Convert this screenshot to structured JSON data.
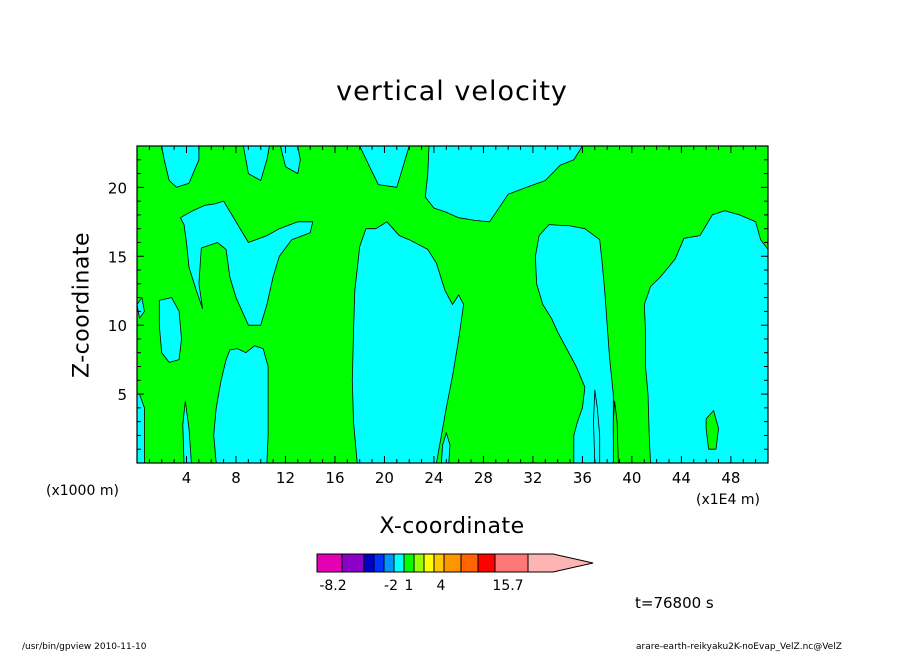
{
  "chart_data": {
    "type": "heatmap",
    "title": "vertical velocity",
    "xlabel": "X-coordinate",
    "ylabel": "Z-coordinate",
    "x_unit_label": "(x1000 m)",
    "x_unit_label_right": "(x1E4 m)",
    "xlim": [
      0,
      51
    ],
    "ylim": [
      0,
      23
    ],
    "x_ticks": [
      4,
      8,
      12,
      16,
      20,
      24,
      28,
      32,
      36,
      40,
      44,
      48
    ],
    "y_ticks": [
      5,
      10,
      15,
      20
    ],
    "field": [
      {
        "value_range": "-2 to 1",
        "color": "#00ffff",
        "regions": [
          {
            "name": "region-a",
            "points": [
              [
                0,
                23
              ],
              [
                2,
                23
              ],
              [
                2.2,
                22
              ],
              [
                2.6,
                20.5
              ],
              [
                3.2,
                20
              ],
              [
                4.2,
                20.3
              ],
              [
                5,
                22
              ],
              [
                5,
                23
              ],
              [
                0,
                23
              ]
            ]
          },
          {
            "name": "region-b",
            "points": [
              [
                5.4,
                23
              ],
              [
                8.6,
                23
              ],
              [
                9,
                21
              ],
              [
                10,
                20.5
              ],
              [
                10.5,
                22
              ],
              [
                10.7,
                23
              ],
              [
                5.4,
                23
              ]
            ]
          },
          {
            "name": "region-c",
            "points": [
              [
                11.6,
                23
              ],
              [
                13,
                23
              ],
              [
                13.2,
                22
              ],
              [
                13,
                21
              ],
              [
                12,
                21.5
              ],
              [
                11.6,
                23
              ]
            ]
          },
          {
            "name": "region-d",
            "points": [
              [
                18,
                23
              ],
              [
                22,
                23
              ],
              [
                21.5,
                21.5
              ],
              [
                21,
                20
              ],
              [
                19.5,
                20.2
              ],
              [
                18.8,
                21.5
              ],
              [
                18,
                23
              ]
            ]
          },
          {
            "name": "region-e",
            "points": [
              [
                23.6,
                23
              ],
              [
                36,
                23
              ],
              [
                35.3,
                22
              ],
              [
                34.2,
                21.6
              ],
              [
                33,
                20.5
              ],
              [
                31.5,
                20
              ],
              [
                30,
                19.5
              ],
              [
                28.5,
                17.5
              ],
              [
                27.3,
                17.6
              ],
              [
                26,
                17.8
              ],
              [
                25,
                18.2
              ],
              [
                24,
                18.5
              ],
              [
                23.3,
                19.3
              ],
              [
                23.5,
                21
              ],
              [
                23.6,
                23
              ]
            ]
          },
          {
            "name": "region-f",
            "points": [
              [
                7,
                19
              ],
              [
                9,
                16
              ],
              [
                10.5,
                16.5
              ],
              [
                11.5,
                17
              ],
              [
                13,
                17.5
              ],
              [
                14.2,
                17.5
              ],
              [
                14,
                16.7
              ],
              [
                12.5,
                16.2
              ],
              [
                11.5,
                15
              ],
              [
                11,
                13.5
              ],
              [
                10.5,
                11.5
              ],
              [
                10,
                10
              ],
              [
                9,
                10
              ],
              [
                8,
                12
              ],
              [
                7.5,
                13.5
              ],
              [
                7.2,
                15.5
              ],
              [
                6.5,
                16
              ],
              [
                5.2,
                15.6
              ],
              [
                5,
                13
              ],
              [
                5.3,
                11.2
              ],
              [
                4.8,
                12.5
              ],
              [
                4.2,
                14.2
              ],
              [
                4,
                16
              ],
              [
                3.8,
                17.3
              ],
              [
                3.5,
                17.8
              ],
              [
                4.5,
                18.3
              ],
              [
                5.5,
                18.7
              ],
              [
                6.3,
                18.8
              ],
              [
                7,
                19
              ]
            ]
          },
          {
            "name": "region-g",
            "points": [
              [
                0,
                11.5
              ],
              [
                0.4,
                12
              ],
              [
                0.6,
                11
              ],
              [
                0.2,
                10.5
              ],
              [
                0,
                11.5
              ]
            ]
          },
          {
            "name": "region-h",
            "points": [
              [
                1.8,
                11.8
              ],
              [
                2.8,
                12
              ],
              [
                3.4,
                11
              ],
              [
                3.6,
                9
              ],
              [
                3.4,
                7.5
              ],
              [
                2.6,
                7.3
              ],
              [
                2,
                8
              ],
              [
                1.8,
                10
              ],
              [
                1.8,
                11.8
              ]
            ]
          },
          {
            "name": "region-i",
            "points": [
              [
                6.4,
                0
              ],
              [
                10.5,
                0
              ],
              [
                10.6,
                2
              ],
              [
                10.6,
                5
              ],
              [
                10.6,
                7
              ],
              [
                10.2,
                8.3
              ],
              [
                9.5,
                8.5
              ],
              [
                8.8,
                8
              ],
              [
                8.1,
                8.3
              ],
              [
                7.5,
                8.2
              ],
              [
                7.2,
                7.5
              ],
              [
                6.8,
                6
              ],
              [
                6.4,
                4
              ],
              [
                6.2,
                2
              ],
              [
                6.4,
                0
              ]
            ]
          },
          {
            "name": "region-j",
            "points": [
              [
                0,
                0
              ],
              [
                0.6,
                0
              ],
              [
                0.6,
                2
              ],
              [
                0.6,
                4
              ],
              [
                0.2,
                5
              ],
              [
                0,
                5
              ],
              [
                0,
                0
              ]
            ]
          },
          {
            "name": "region-k",
            "points": [
              [
                3.8,
                0
              ],
              [
                4.4,
                0
              ],
              [
                4.2,
                2.5
              ],
              [
                3.9,
                4.5
              ],
              [
                3.7,
                2.8
              ],
              [
                3.8,
                0
              ]
            ]
          },
          {
            "name": "region-l",
            "points": [
              [
                17.8,
                0
              ],
              [
                24.2,
                0
              ],
              [
                24.6,
                2
              ],
              [
                25,
                4
              ],
              [
                25.5,
                6.3
              ],
              [
                26,
                9
              ],
              [
                26.4,
                11.5
              ],
              [
                26,
                12.2
              ],
              [
                25.5,
                11.5
              ],
              [
                24.9,
                12.5
              ],
              [
                24.2,
                14.5
              ],
              [
                23.5,
                15.5
              ],
              [
                22,
                16.2
              ],
              [
                21.2,
                16.5
              ],
              [
                20.2,
                17.5
              ],
              [
                19.3,
                17
              ],
              [
                18.5,
                17
              ],
              [
                18,
                15.7
              ],
              [
                17.6,
                12.5
              ],
              [
                17.5,
                9.5
              ],
              [
                17.4,
                6
              ],
              [
                17.5,
                3
              ],
              [
                17.8,
                0
              ]
            ]
          },
          {
            "name": "region-m",
            "points": [
              [
                24.6,
                0
              ],
              [
                25.2,
                0
              ],
              [
                25.3,
                1.3
              ],
              [
                25,
                2.2
              ],
              [
                24.7,
                1.3
              ],
              [
                24.6,
                0
              ]
            ]
          },
          {
            "name": "region-n",
            "points": [
              [
                35.3,
                0
              ],
              [
                38.7,
                0
              ],
              [
                38.5,
                2
              ],
              [
                38.5,
                5
              ],
              [
                38.2,
                7.6
              ],
              [
                38,
                10
              ],
              [
                37.8,
                12.5
              ],
              [
                37.6,
                14.5
              ],
              [
                37.4,
                16.2
              ],
              [
                36.2,
                17
              ],
              [
                35,
                17.2
              ],
              [
                33.3,
                17.3
              ],
              [
                32.5,
                16.5
              ],
              [
                32.2,
                15
              ],
              [
                32.3,
                13
              ],
              [
                32.8,
                11.5
              ],
              [
                33.5,
                10.5
              ],
              [
                34,
                9.5
              ],
              [
                34.6,
                8.5
              ],
              [
                35.5,
                7
              ],
              [
                36.2,
                5.5
              ],
              [
                36,
                4
              ],
              [
                35.6,
                3
              ],
              [
                35.3,
                2
              ],
              [
                35.3,
                0
              ]
            ]
          },
          {
            "name": "region-o",
            "points": [
              [
                37,
                0
              ],
              [
                37.4,
                0
              ],
              [
                37.4,
                2
              ],
              [
                37.2,
                4
              ],
              [
                37,
                5.3
              ],
              [
                36.9,
                3
              ],
              [
                37,
                0
              ]
            ]
          },
          {
            "name": "region-p",
            "points": [
              [
                41.5,
                0
              ],
              [
                51,
                0
              ],
              [
                51,
                11
              ],
              [
                51,
                15.5
              ],
              [
                50.4,
                16.2
              ],
              [
                50,
                17.5
              ],
              [
                48.7,
                18
              ],
              [
                47.5,
                18.3
              ],
              [
                46.5,
                18
              ],
              [
                45.5,
                16.5
              ],
              [
                44.2,
                16.3
              ],
              [
                43.5,
                14.8
              ],
              [
                42.3,
                13.5
              ],
              [
                41.5,
                12.8
              ],
              [
                41,
                11.5
              ],
              [
                41.1,
                9.5
              ],
              [
                41.1,
                7
              ],
              [
                41.3,
                5
              ],
              [
                41.4,
                2
              ],
              [
                41.5,
                0
              ]
            ]
          }
        ]
      },
      {
        "value_range": "1 to 2",
        "color": "#00ff00",
        "regions": [
          {
            "name": "region-q",
            "points": [
              [
                46,
                3.2
              ],
              [
                46.6,
                3.8
              ],
              [
                47,
                2.5
              ],
              [
                46.8,
                1
              ],
              [
                46.2,
                1
              ],
              [
                46,
                2.5
              ],
              [
                46,
                3.2
              ]
            ]
          },
          {
            "name": "region-r",
            "points": [
              [
                38.5,
                0
              ],
              [
                38.9,
                0
              ],
              [
                38.8,
                3
              ],
              [
                38.6,
                4.5
              ],
              [
                38.5,
                3
              ],
              [
                38.5,
                0
              ]
            ]
          }
        ]
      }
    ],
    "background_value_range": "1 to 2",
    "background_color": "#00ff00",
    "colorbar": {
      "colors": [
        "#e600b4",
        "#8c00c8",
        "#0000c8",
        "#0032ff",
        "#0096ff",
        "#00ffff",
        "#00ff00",
        "#96ff00",
        "#ffff00",
        "#ffc800",
        "#ff9600",
        "#ff6400",
        "#ff0000",
        "#ff7878",
        "#ffb4b4"
      ],
      "tick_labels": [
        "-8.2",
        "-2",
        "1",
        "4",
        "15.7"
      ],
      "extend": "max"
    },
    "grid": false,
    "legend": "bottom"
  },
  "annotations": {
    "time": "t=76800 s",
    "footer_left": "/usr/bin/gpview   2010-11-10",
    "footer_right": "arare-earth-reikyaku2K-noEvap_VelZ.nc@VelZ"
  }
}
